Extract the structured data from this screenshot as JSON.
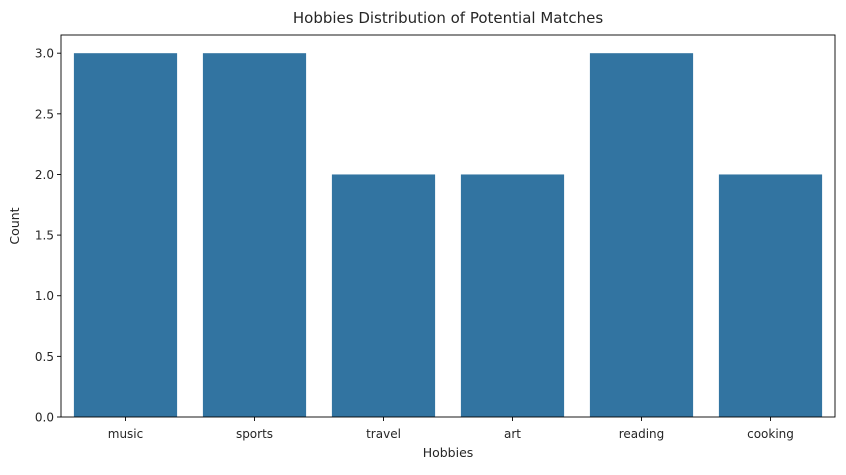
{
  "chart_data": {
    "type": "bar",
    "title": "Hobbies Distribution of Potential Matches",
    "xlabel": "Hobbies",
    "ylabel": "Count",
    "categories": [
      "music",
      "sports",
      "travel",
      "art",
      "reading",
      "cooking"
    ],
    "values": [
      3,
      3,
      2,
      2,
      3,
      2
    ],
    "ylim": [
      0,
      3.15
    ],
    "yticks": [
      "0.0",
      "0.5",
      "1.0",
      "1.5",
      "2.0",
      "2.5",
      "3.0"
    ],
    "bar_color": "#3274a1",
    "grid": false,
    "legend": "none"
  }
}
